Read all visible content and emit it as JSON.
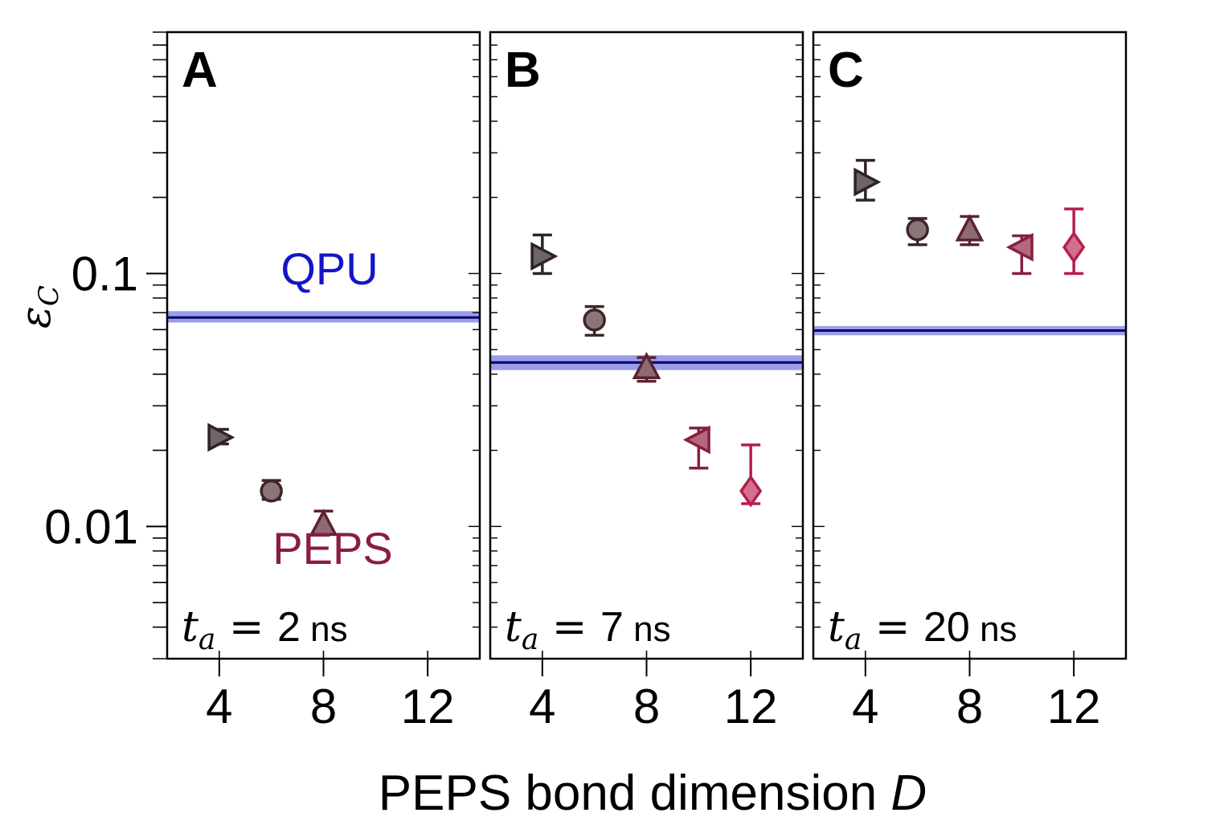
{
  "chart_data": {
    "type": "scatter",
    "xlabel": "PEPS bond dimension",
    "xlabel_var": "D",
    "ylabel_symbol": "ε",
    "ylabel_sub": "C",
    "yscale": "log",
    "ylim": [
      0.003,
      0.9
    ],
    "xlim": [
      2,
      14
    ],
    "xticks": [
      4,
      8,
      12
    ],
    "xtick_labels": [
      "4",
      "8",
      "12"
    ],
    "ytick_labels": [
      {
        "value": 0.1,
        "label": "0.1"
      },
      {
        "value": 0.01,
        "label": "0.01"
      }
    ],
    "series_labels": {
      "qpu": "QPU",
      "peps": "PEPS"
    },
    "marker_colors": {
      "4": "#6f6566",
      "6": "#8a7678",
      "8": "#8e6a72",
      "10": "#b5677e",
      "12": "#d3708d"
    },
    "edge_colors": {
      "4": "#2e2426",
      "6": "#3f2529",
      "8": "#5c2232",
      "10": "#86203f",
      "12": "#b51f4c"
    },
    "marker_shapes": {
      "4": "triangle-right",
      "6": "circle",
      "8": "triangle-up",
      "10": "triangle-left",
      "12": "diamond"
    },
    "qpu_color": "#1414c8",
    "qpu_band_color": "#9c9cec",
    "panels": [
      {
        "letter": "A",
        "ta_var": "t",
        "ta_sub": "a",
        "ta_eq": "=",
        "ta_value": "2",
        "ta_unit": "ns",
        "qpu": {
          "value": 0.067,
          "low": 0.064,
          "high": 0.071
        },
        "points": [
          {
            "x": 4,
            "y": 0.0225,
            "low": 0.0212,
            "high": 0.0242
          },
          {
            "x": 6,
            "y": 0.0138,
            "low": 0.0128,
            "high": 0.0152
          },
          {
            "x": 8,
            "y": 0.0102,
            "low": 0.0096,
            "high": 0.0115
          }
        ]
      },
      {
        "letter": "B",
        "ta_var": "t",
        "ta_sub": "a",
        "ta_eq": "=",
        "ta_value": "7",
        "ta_unit": "ns",
        "qpu": {
          "value": 0.0445,
          "low": 0.0415,
          "high": 0.0475
        },
        "points": [
          {
            "x": 4,
            "y": 0.117,
            "low": 0.1,
            "high": 0.142
          },
          {
            "x": 6,
            "y": 0.0655,
            "low": 0.057,
            "high": 0.074
          },
          {
            "x": 8,
            "y": 0.0425,
            "low": 0.0375,
            "high": 0.0465
          },
          {
            "x": 10,
            "y": 0.022,
            "low": 0.017,
            "high": 0.0245
          },
          {
            "x": 12,
            "y": 0.0138,
            "low": 0.0123,
            "high": 0.021
          }
        ]
      },
      {
        "letter": "C",
        "ta_var": "t",
        "ta_sub": "a",
        "ta_eq": "=",
        "ta_value": "20",
        "ta_unit": "ns",
        "qpu": {
          "value": 0.0595,
          "low": 0.057,
          "high": 0.062
        },
        "points": [
          {
            "x": 4,
            "y": 0.23,
            "low": 0.195,
            "high": 0.28
          },
          {
            "x": 6,
            "y": 0.149,
            "low": 0.13,
            "high": 0.165
          },
          {
            "x": 8,
            "y": 0.149,
            "low": 0.13,
            "high": 0.168
          },
          {
            "x": 10,
            "y": 0.127,
            "low": 0.1,
            "high": 0.141
          },
          {
            "x": 12,
            "y": 0.127,
            "low": 0.1,
            "high": 0.18
          }
        ]
      }
    ]
  }
}
